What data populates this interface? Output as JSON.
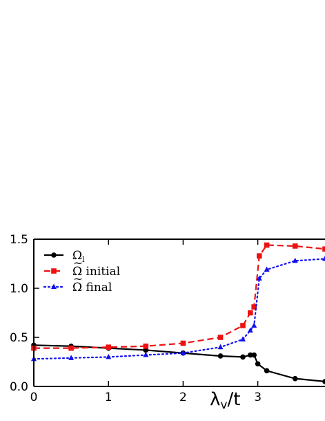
{
  "chart_data": {
    "type": "line",
    "title": "",
    "xlabel": "λ",
    "xlabel_sub": "v",
    "xlabel_suffix": "/t",
    "ylabel": "",
    "xlim": [
      0,
      3.9
    ],
    "ylim": [
      0,
      1.5
    ],
    "xticks": [
      0,
      1,
      2,
      3
    ],
    "xtick_labels": [
      "0",
      "1",
      "2",
      "3"
    ],
    "yticks": [
      0.0,
      0.5,
      1.0,
      1.5
    ],
    "ytick_labels": [
      "0.0",
      "0.5",
      "1.0",
      "1.5"
    ],
    "legend_position": "top-left",
    "grid": false,
    "series": [
      {
        "name": "Ω",
        "name_sub": "l",
        "name_tilde": false,
        "name_suffix": "",
        "color": "#000000",
        "line_style": "solid",
        "marker": "circle",
        "x": [
          0,
          0.5,
          1.0,
          1.5,
          2.0,
          2.5,
          2.8,
          2.9,
          2.95,
          3.0,
          3.12,
          3.5,
          3.9
        ],
        "y": [
          0.42,
          0.41,
          0.39,
          0.37,
          0.34,
          0.31,
          0.3,
          0.32,
          0.32,
          0.23,
          0.16,
          0.08,
          0.05
        ]
      },
      {
        "name": "Ω",
        "name_sub": "",
        "name_tilde": true,
        "name_suffix": " initial",
        "color": "#ee1111",
        "line_style": "dashed",
        "marker": "square",
        "x": [
          0,
          0.5,
          1.0,
          1.5,
          2.0,
          2.5,
          2.8,
          2.9,
          2.95,
          3.02,
          3.12,
          3.5,
          3.9
        ],
        "y": [
          0.39,
          0.39,
          0.4,
          0.41,
          0.44,
          0.5,
          0.62,
          0.75,
          0.81,
          1.33,
          1.44,
          1.43,
          1.4
        ]
      },
      {
        "name": "Ω",
        "name_sub": "",
        "name_tilde": true,
        "name_suffix": " final",
        "color": "#1111ee",
        "line_style": "dotted",
        "marker": "triangle",
        "x": [
          0,
          0.5,
          1.0,
          1.5,
          2.0,
          2.5,
          2.8,
          2.9,
          2.95,
          3.02,
          3.12,
          3.5,
          3.9
        ],
        "y": [
          0.28,
          0.29,
          0.3,
          0.32,
          0.34,
          0.4,
          0.48,
          0.57,
          0.62,
          1.1,
          1.19,
          1.28,
          1.3
        ]
      }
    ]
  }
}
